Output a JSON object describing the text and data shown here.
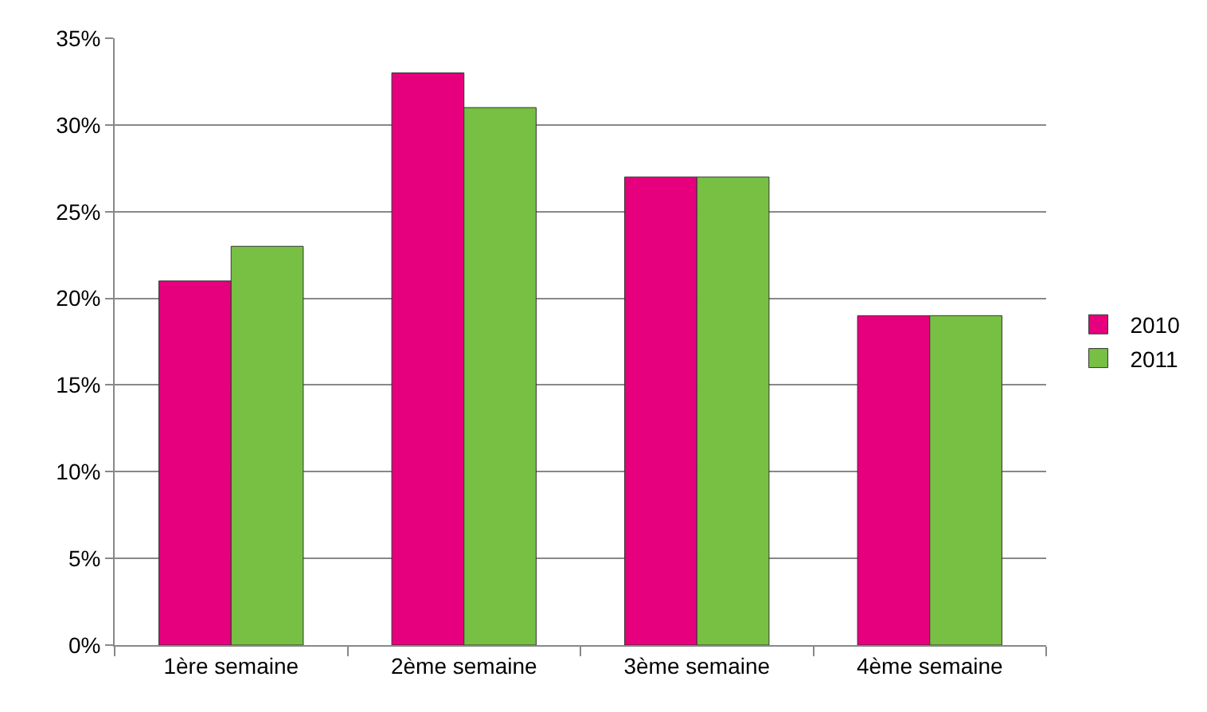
{
  "chart_data": {
    "type": "bar",
    "categories": [
      "1ère semaine",
      "2ème semaine",
      "3ème semaine",
      "4ème semaine"
    ],
    "series": [
      {
        "name": "2010",
        "color": "#e6007e",
        "values": [
          21,
          33,
          27,
          19
        ]
      },
      {
        "name": "2011",
        "color": "#77c043",
        "values": [
          23,
          31,
          27,
          19
        ]
      }
    ],
    "ylim": [
      0,
      35
    ],
    "yticks": [
      {
        "value": 0,
        "label": "0%"
      },
      {
        "value": 5,
        "label": "5%"
      },
      {
        "value": 10,
        "label": "10%"
      },
      {
        "value": 15,
        "label": "15%"
      },
      {
        "value": 20,
        "label": "20%"
      },
      {
        "value": 25,
        "label": "25%"
      },
      {
        "value": 30,
        "label": "30%"
      },
      {
        "value": 35,
        "label": "35%"
      }
    ],
    "grid": "y",
    "legend": "right"
  }
}
